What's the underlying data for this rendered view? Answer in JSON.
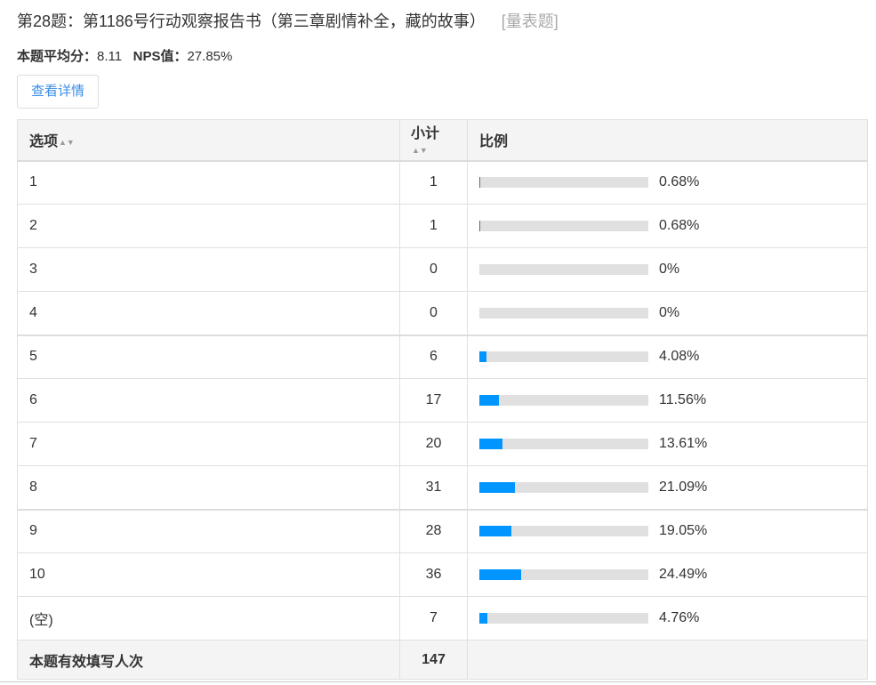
{
  "title": "第28题：第1186号行动观察报告书（第三章剧情补全，藏的故事）",
  "question_type": "[量表题]",
  "stats": {
    "avg_label": "本题平均分：",
    "avg_value": "8.11",
    "nps_label": "NPS值：",
    "nps_value": "27.85%"
  },
  "detail_button": "查看详情",
  "colors": {
    "bar_fill": "#0095ff",
    "bar_track": "#e0e0e0",
    "link": "#3a8ee6"
  },
  "table": {
    "headers": [
      "选项",
      "小计",
      "比例"
    ],
    "sort_icon": "sort-icon",
    "rows": [
      {
        "option": "1",
        "count": "1",
        "percent": "0.68%",
        "value": 0.68
      },
      {
        "option": "2",
        "count": "1",
        "percent": "0.68%",
        "value": 0.68
      },
      {
        "option": "3",
        "count": "0",
        "percent": "0%",
        "value": 0
      },
      {
        "option": "4",
        "count": "0",
        "percent": "0%",
        "value": 0
      },
      {
        "option": "5",
        "count": "6",
        "percent": "4.08%",
        "value": 4.08
      },
      {
        "option": "6",
        "count": "17",
        "percent": "11.56%",
        "value": 11.56
      },
      {
        "option": "7",
        "count": "20",
        "percent": "13.61%",
        "value": 13.61
      },
      {
        "option": "8",
        "count": "31",
        "percent": "21.09%",
        "value": 21.09
      },
      {
        "option": "9",
        "count": "28",
        "percent": "19.05%",
        "value": 19.05
      },
      {
        "option": "10",
        "count": "36",
        "percent": "24.49%",
        "value": 24.49
      },
      {
        "option": "(空)",
        "count": "7",
        "percent": "4.76%",
        "value": 4.76
      }
    ],
    "footer": {
      "label": "本题有效填写人次",
      "total": "147"
    }
  }
}
